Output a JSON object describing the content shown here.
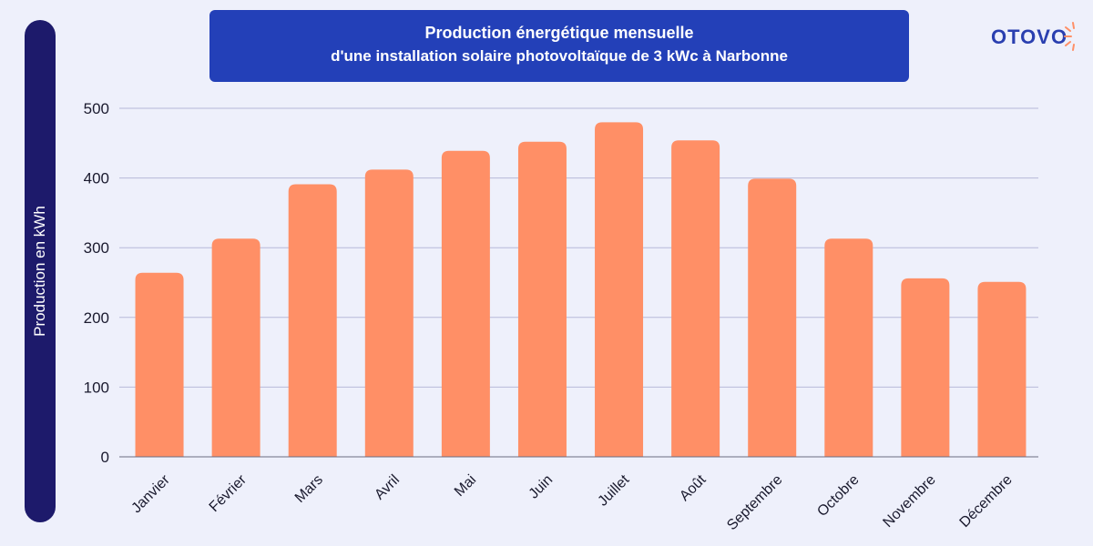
{
  "title_line1": "Production énergétique mensuelle",
  "title_line2": "d'une installation solaire photovoltaïque de 3 kWc à Narbonne",
  "logo_text": "OTOVO",
  "colors": {
    "bar": "#ff8f66",
    "grid": "#b7b9d9",
    "ylabel_bg": "#1d1a6b",
    "title_bg": "#2340b8",
    "logo": "#2a3fb0",
    "logo_sun": "#ff8f66"
  },
  "chart_data": {
    "type": "bar",
    "title": "Production énergétique mensuelle d'une installation solaire photovoltaïque de 3 kWc à Narbonne",
    "xlabel": "",
    "ylabel": "Production en kWh",
    "ylim": [
      0,
      500
    ],
    "yticks": [
      0,
      100,
      200,
      300,
      400,
      500
    ],
    "grid": true,
    "categories": [
      "Janvier",
      "Février",
      "Mars",
      "Avril",
      "Mai",
      "Juin",
      "Juillet",
      "Août",
      "Septembre",
      "Octobre",
      "Novembre",
      "Décembre"
    ],
    "values": [
      264,
      313,
      391,
      412,
      439,
      452,
      480,
      454,
      399,
      313,
      256,
      251
    ]
  }
}
